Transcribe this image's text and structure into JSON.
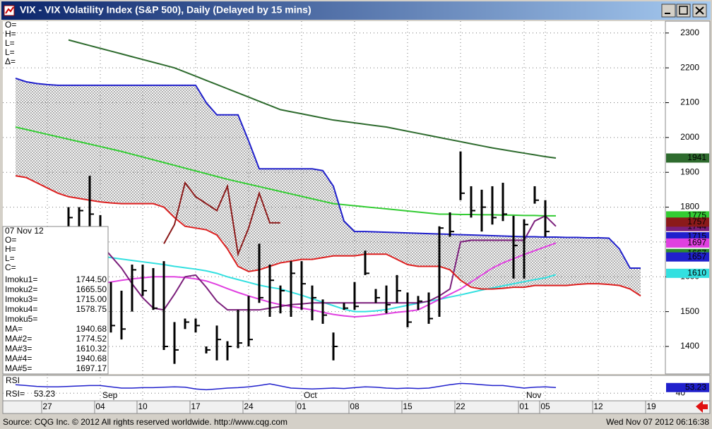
{
  "window": {
    "title": "VIX - VIX Volatility Index (S&P 500), Daily (Delayed by 15 mins)",
    "footer_source": "Source: CQG Inc. © 2012 All rights reserved worldwide. http://www.cqg.com",
    "footer_time": "Wed Nov 07 2012 06:16:38"
  },
  "chart_data": {
    "type": "ohlc",
    "categories": [
      null,
      null,
      null,
      "27",
      null,
      null,
      null,
      null,
      "04",
      null,
      null,
      null,
      "10",
      null,
      null,
      null,
      null,
      "17",
      null,
      null,
      null,
      null,
      "24",
      null,
      null,
      null,
      null,
      "01",
      null,
      null,
      null,
      null,
      "08",
      null,
      null,
      null,
      null,
      "15",
      null,
      null,
      null,
      null,
      "22",
      null,
      null,
      null,
      null,
      null,
      "01",
      null,
      "05",
      null,
      null,
      null,
      null,
      "12",
      null,
      null,
      null,
      null,
      "19"
    ],
    "months": [
      "Sep",
      "Oct",
      "Nov"
    ],
    "high": [
      null,
      null,
      null,
      null,
      null,
      1800,
      1800,
      1890,
      1777,
      1585,
      1560,
      1635,
      1635,
      1625,
      1645,
      1470,
      1480,
      1480,
      1400,
      1460,
      1415,
      1505,
      1545,
      1695,
      1635,
      1575,
      1645,
      1645,
      1575,
      1535,
      1440,
      1525,
      1585,
      1675,
      1565,
      1575,
      1605,
      1555,
      1545,
      1555,
      1745,
      1785,
      1960,
      1860,
      1850,
      1860,
      1870,
      1775,
      1765,
      1860,
      1820,
      null,
      null,
      null,
      null,
      null,
      null,
      null,
      null,
      null,
      null
    ],
    "low": [
      null,
      null,
      null,
      null,
      null,
      1730,
      1720,
      1720,
      1544,
      1440,
      1420,
      1500,
      1545,
      1505,
      1390,
      1350,
      1450,
      1440,
      1380,
      1360,
      1360,
      1395,
      1400,
      1525,
      1485,
      1495,
      1485,
      1505,
      1475,
      1465,
      1360,
      1505,
      1505,
      1605,
      1525,
      1495,
      1525,
      1455,
      1505,
      1465,
      1485,
      1715,
      1820,
      1770,
      1730,
      1750,
      1760,
      1595,
      1595,
      1810,
      1715,
      null,
      null,
      null,
      null,
      null,
      null,
      null,
      null,
      null,
      null
    ],
    "close": [
      null,
      null,
      null,
      null,
      null,
      1770,
      1790,
      1780,
      1560,
      1460,
      1450,
      1620,
      1560,
      1510,
      1400,
      1390,
      1470,
      1460,
      1390,
      1420,
      1400,
      1410,
      1420,
      1540,
      1590,
      1560,
      1610,
      1580,
      1540,
      1490,
      1400,
      1510,
      1515,
      1610,
      1540,
      1520,
      1560,
      1470,
      1530,
      1480,
      1740,
      1730,
      1840,
      1790,
      1800,
      1770,
      1780,
      1690,
      1750,
      1820,
      1730,
      null,
      null,
      null,
      null,
      null,
      null,
      null,
      null,
      null,
      null
    ],
    "bar_color": "#000000",
    "ylim": [
      1321,
      2334
    ],
    "yticks": [
      1400,
      1500,
      1600,
      1700,
      1800,
      1900,
      2000,
      2100,
      2200,
      2300
    ],
    "grid": true,
    "cloud_color": "#8a8a8a",
    "series": [
      {
        "color": "#2e6b2e",
        "values": [
          null,
          null,
          null,
          null,
          null,
          2280,
          2272,
          2264,
          2256,
          2248,
          2240,
          2232,
          2224,
          2216,
          2208,
          2200,
          2188,
          2176,
          2164,
          2152,
          2140,
          2128,
          2116,
          2104,
          2092,
          2080,
          2074,
          2068,
          2062,
          2056,
          2050,
          2046,
          2042,
          2038,
          2034,
          2030,
          2024,
          2018,
          2012,
          2006,
          2000,
          1994,
          1988,
          1982,
          1976,
          1970,
          1965,
          1960,
          1955,
          1950,
          1945,
          1941,
          null,
          null,
          null,
          null,
          null,
          null,
          null,
          null,
          null
        ]
      },
      {
        "color": "#33cc33",
        "values": [
          2030,
          2023,
          2016,
          2009,
          2002,
          1995,
          1988,
          1981,
          1974,
          1967,
          1960,
          1952,
          1944,
          1936,
          1928,
          1920,
          1912,
          1904,
          1896,
          1888,
          1880,
          1873,
          1866,
          1859,
          1852,
          1845,
          1838,
          1831,
          1824,
          1817,
          1810,
          1807,
          1804,
          1801,
          1798,
          1795,
          1792,
          1789,
          1786,
          1783,
          1780,
          1780,
          1779,
          1779,
          1778,
          1778,
          1777,
          1777,
          1776,
          1776,
          1775,
          1775,
          null,
          null,
          null,
          null,
          null,
          null,
          null,
          null,
          null
        ]
      },
      {
        "color": "#33e0e0",
        "values": [
          null,
          null,
          null,
          null,
          null,
          null,
          null,
          null,
          1660,
          1655,
          1651,
          1647,
          1643,
          1639,
          1635,
          1630,
          1626,
          1622,
          1617,
          1610,
          1600,
          1592,
          1584,
          1576,
          1570,
          1565,
          1556,
          1547,
          1537,
          1527,
          1517,
          1507,
          1500,
          1500,
          1502,
          1506,
          1512,
          1518,
          1524,
          1530,
          1535,
          1542,
          1548,
          1555,
          1562,
          1568,
          1574,
          1580,
          1586,
          1592,
          1597,
          1606,
          null,
          null,
          null,
          null,
          null,
          null,
          null,
          null,
          null
        ]
      },
      {
        "color": "#e040e0",
        "values": [
          null,
          null,
          null,
          null,
          null,
          null,
          null,
          null,
          1580,
          1585,
          1590,
          1594,
          1597,
          1600,
          1600,
          1600,
          1598,
          1594,
          1588,
          1578,
          1566,
          1555,
          1545,
          1536,
          1527,
          1520,
          1515,
          1510,
          1505,
          1498,
          1492,
          1488,
          1485,
          1487,
          1490,
          1494,
          1498,
          1501,
          1505,
          1520,
          1535,
          1550,
          1565,
          1585,
          1605,
          1625,
          1640,
          1652,
          1664,
          1675,
          1686,
          1697,
          null,
          null,
          null,
          null,
          null,
          null,
          null,
          null,
          null
        ]
      },
      {
        "color": "#7b1f7b",
        "values": [
          null,
          null,
          null,
          null,
          null,
          null,
          null,
          null,
          1695,
          1660,
          1625,
          1580,
          1540,
          1510,
          1505,
          1550,
          1600,
          1605,
          1570,
          1530,
          1505,
          1505,
          1505,
          1505,
          1510,
          1515,
          1520,
          1522,
          1525,
          1525,
          1525,
          1525,
          1525,
          1525,
          1525,
          1525,
          1525,
          1525,
          1525,
          1530,
          1545,
          1565,
          1700,
          1705,
          1705,
          1705,
          1705,
          1705,
          1705,
          1760,
          1775,
          1745,
          null,
          null,
          null,
          null,
          null,
          null,
          null,
          null,
          null
        ]
      },
      {
        "color": "#2020cc",
        "values": [
          2170,
          2160,
          2155,
          2152,
          2150,
          2150,
          2150,
          2150,
          2150,
          2150,
          2150,
          2150,
          2150,
          2150,
          2150,
          2150,
          2150,
          2150,
          2100,
          2065,
          2065,
          2065,
          1990,
          1910,
          1910,
          1910,
          1910,
          1910,
          1910,
          1905,
          1860,
          1760,
          1730,
          1730,
          1729,
          1728,
          1727,
          1726,
          1725,
          1724,
          1723,
          1722,
          1721,
          1720,
          1719,
          1718,
          1717,
          1716,
          1715,
          1715,
          1714,
          1714,
          1713,
          1713,
          1712,
          1712,
          1711,
          1680,
          1625,
          1625,
          null
        ]
      },
      {
        "color": "#dd2020",
        "values": [
          1890,
          1885,
          1870,
          1855,
          1840,
          1830,
          1825,
          1820,
          1815,
          1812,
          1810,
          1810,
          1810,
          1810,
          1800,
          1770,
          1745,
          1740,
          1735,
          1720,
          1680,
          1630,
          1615,
          1620,
          1630,
          1640,
          1645,
          1650,
          1650,
          1655,
          1660,
          1660,
          1660,
          1665,
          1665,
          1665,
          1650,
          1635,
          1630,
          1630,
          1630,
          1620,
          1590,
          1570,
          1565,
          1565,
          1567,
          1570,
          1570,
          1575,
          1575,
          1575,
          1575,
          1578,
          1580,
          1580,
          1578,
          1575,
          1565,
          1545,
          null
        ]
      },
      {
        "color": "#8b1a1a",
        "values": [
          null,
          null,
          null,
          null,
          null,
          null,
          null,
          null,
          null,
          null,
          null,
          null,
          null,
          null,
          1695,
          1750,
          1870,
          1830,
          1810,
          1790,
          1860,
          1665,
          1740,
          1840,
          1755,
          1755,
          null,
          null,
          null,
          null,
          null,
          null,
          null,
          null,
          null,
          null,
          null,
          null,
          null,
          null,
          null,
          null,
          null,
          null,
          null,
          null,
          null,
          null,
          null,
          null,
          null,
          null,
          null,
          null,
          null,
          null,
          null,
          null,
          null,
          null,
          null
        ]
      }
    ],
    "price_tags": [
      {
        "value": 1941,
        "color": "#2e6b2e"
      },
      {
        "value": 1775,
        "color": "#33cc33"
      },
      {
        "value": 1744,
        "color": "#7b1f7b"
      },
      {
        "value": 1757,
        "color": "#8b1a1a"
      },
      {
        "value": 1715,
        "color": "#2020cc"
      },
      {
        "value": 1697,
        "color": "#e040e0"
      },
      {
        "value": 1667,
        "color": "#2e8b2e"
      },
      {
        "value": 1657,
        "color": "#2020cc"
      },
      {
        "value": 1610,
        "color": "#33e0e0"
      }
    ],
    "ohlc_labels": [
      "O=",
      "H=",
      "L=",
      "L=",
      "Δ="
    ],
    "info_box": {
      "date": "07 Nov 12",
      "labels": [
        "O=",
        "H=",
        "L=",
        "C="
      ],
      "readings": [
        {
          "label": "Imoku1=",
          "value": "1744.50"
        },
        {
          "label": "Imoku2=",
          "value": "1665.50"
        },
        {
          "label": "Imoku3=",
          "value": "1715.00"
        },
        {
          "label": "Imoku4=",
          "value": "1578.75"
        },
        {
          "label": "Imoku5="
        },
        {
          "label": "MA=",
          "value": "1940.68"
        },
        {
          "label": "MA#2=",
          "value": "1774.52"
        },
        {
          "label": "MA#3=",
          "value": "1610.32"
        },
        {
          "label": "MA#4=",
          "value": "1940.68"
        },
        {
          "label": "MA#5=",
          "value": "1697.17"
        }
      ]
    },
    "rsi": {
      "label": "RSI",
      "readout_label": "RSI=",
      "color": "#2020cc",
      "ylim": [
        22,
        77
      ],
      "yticks": [
        40
      ],
      "values": [
        60,
        58,
        56,
        55,
        55,
        56,
        57,
        58,
        58,
        55,
        52,
        52,
        53,
        53,
        54,
        55,
        54,
        50,
        48,
        50,
        52,
        53,
        55,
        58,
        62,
        57,
        52,
        51,
        50,
        51,
        52,
        51,
        53,
        55,
        54,
        52,
        51,
        52,
        51,
        52,
        56,
        60,
        63,
        62,
        60,
        58,
        58,
        55,
        52,
        54,
        55,
        53.23,
        null,
        null,
        null,
        null,
        null,
        null,
        null,
        null,
        null
      ]
    }
  }
}
